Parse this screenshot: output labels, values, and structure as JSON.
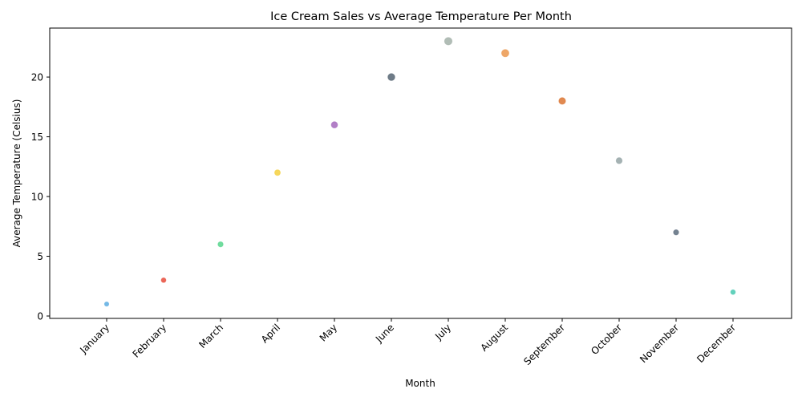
{
  "chart_data": {
    "type": "scatter",
    "title": "Ice Cream Sales vs Average Temperature Per Month",
    "xlabel": "Month",
    "ylabel": "Average Temperature (Celsius)",
    "categories": [
      "January",
      "February",
      "March",
      "April",
      "May",
      "June",
      "July",
      "August",
      "September",
      "October",
      "November",
      "December"
    ],
    "values": [
      1,
      3,
      6,
      12,
      16,
      20,
      23,
      22,
      18,
      13,
      7,
      2
    ],
    "relative_marker_size": [
      1.0,
      1.2,
      1.5,
      1.8,
      2.2,
      2.7,
      3.2,
      3.0,
      2.5,
      2.0,
      1.5,
      1.2
    ],
    "colors": [
      "#5dade2",
      "#e74c3c",
      "#58d68d",
      "#f4d03f",
      "#a569bd",
      "#566573",
      "#a3b1a9",
      "#eb984e",
      "#dc7633",
      "#95a5a6",
      "#5d6d7e",
      "#48c9b0"
    ],
    "yticks": [
      0,
      5,
      10,
      15,
      20
    ],
    "ylim": [
      -0.2,
      24.1
    ],
    "grid": false,
    "legend": "none"
  }
}
